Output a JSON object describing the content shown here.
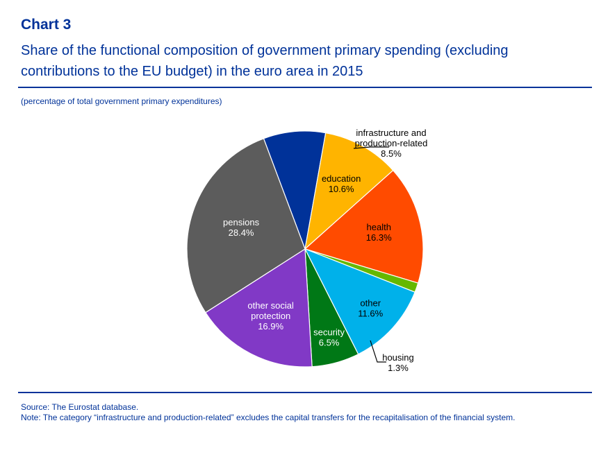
{
  "header": {
    "chart_label": "Chart 3",
    "title_line1": "Share of the functional composition of government primary spending (excluding",
    "title_line2": "contributions to the EU budget) in the euro area in 2015",
    "subtitle": "(percentage of total government primary expenditures)"
  },
  "footer": {
    "source": "Source: The Eurostat database.",
    "note": "Note: The category “infrastructure and production-related” excludes the capital transfers for the recapitalisation of the financial system."
  },
  "chart_data": {
    "type": "pie",
    "unit": "%",
    "slices": [
      {
        "label": [
          "infrastructure and",
          "production-related"
        ],
        "value": 8.5,
        "display": "8.5%",
        "color": "#003299",
        "text_color": "#000000"
      },
      {
        "label": [
          "education"
        ],
        "value": 10.6,
        "display": "10.6%",
        "color": "#FFB400",
        "text_color": "#000000"
      },
      {
        "label": [
          "health"
        ],
        "value": 16.3,
        "display": "16.3%",
        "color": "#FF4B00",
        "text_color": "#000000"
      },
      {
        "label": [
          "housing"
        ],
        "value": 1.3,
        "display": "1.3%",
        "color": "#65B800",
        "text_color": "#000000"
      },
      {
        "label": [
          "other"
        ],
        "value": 11.6,
        "display": "11.6%",
        "color": "#00B1EA",
        "text_color": "#000000"
      },
      {
        "label": [
          "security"
        ],
        "value": 6.5,
        "display": "6.5%",
        "color": "#007816",
        "text_color": "#ffffff"
      },
      {
        "label": [
          "other social",
          "protection"
        ],
        "value": 16.9,
        "display": "16.9%",
        "color": "#8139C6",
        "text_color": "#ffffff"
      },
      {
        "label": [
          "pensions"
        ],
        "value": 28.4,
        "display": "28.4%",
        "color": "#5C5C5C",
        "text_color": "#ffffff"
      }
    ]
  }
}
